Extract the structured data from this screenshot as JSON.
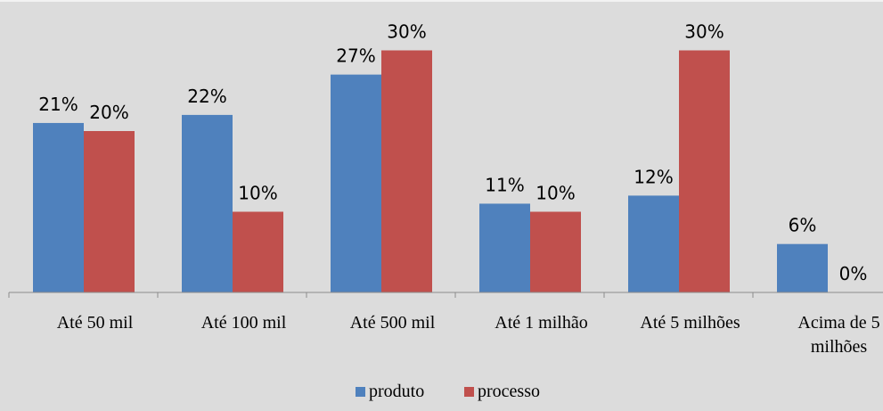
{
  "chart_data": {
    "type": "bar",
    "title": "",
    "xlabel": "",
    "ylabel": "",
    "ylim": [
      0,
      32
    ],
    "grid": false,
    "legend_position": "bottom",
    "categories": [
      [
        "Até 50 mil"
      ],
      [
        "Até 100 mil"
      ],
      [
        "Até 500 mil"
      ],
      [
        "Até 1 milhão"
      ],
      [
        "Até 5 milhões"
      ],
      [
        "Acima de 5",
        "milhões"
      ]
    ],
    "series": [
      {
        "name": "produto",
        "color": "#4f81bd",
        "values": [
          21,
          22,
          27,
          11,
          12,
          6
        ],
        "labels": [
          "21%",
          "22%",
          "27%",
          "11%",
          "12%",
          "6%"
        ]
      },
      {
        "name": "processo",
        "color": "#c0504d",
        "values": [
          20,
          10,
          30,
          10,
          30,
          0
        ],
        "labels": [
          "20%",
          "10%",
          "30%",
          "10%",
          "30%",
          "0%"
        ]
      }
    ]
  }
}
